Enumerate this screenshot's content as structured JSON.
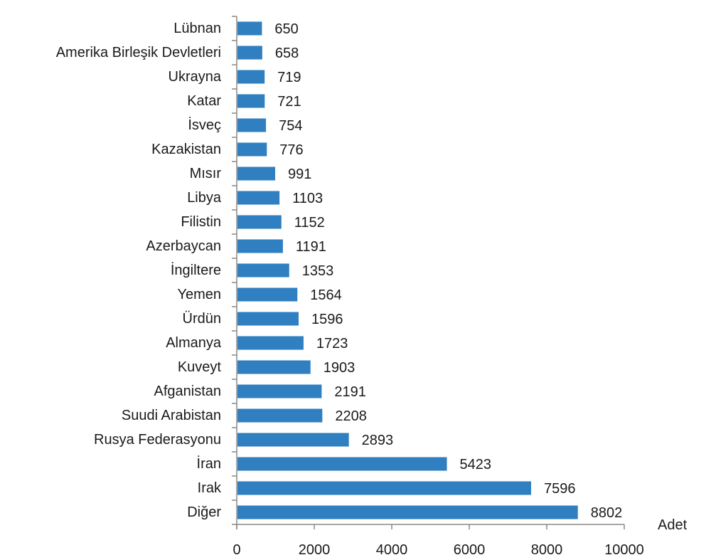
{
  "chart_data": {
    "type": "bar",
    "orientation": "horizontal",
    "title": "",
    "xlabel": "",
    "ylabel": "",
    "unit_label": "Adet",
    "categories": [
      "Lübnan",
      "Amerika Birleşik Devletleri",
      "Ukrayna",
      "Katar",
      "İsveç",
      "Kazakistan",
      "Mısır",
      "Libya",
      "Filistin",
      "Azerbaycan",
      "İngiltere",
      "Yemen",
      "Ürdün",
      "Almanya",
      "Kuveyt",
      "Afganistan",
      "Suudi Arabistan",
      "Rusya Federasyonu",
      "İran",
      "Irak",
      "Diğer"
    ],
    "values": [
      650,
      658,
      719,
      721,
      754,
      776,
      991,
      1103,
      1152,
      1191,
      1353,
      1564,
      1596,
      1723,
      1903,
      2191,
      2208,
      2893,
      5423,
      7596,
      8802
    ],
    "xlim": [
      0,
      10000
    ],
    "xticks": [
      "0",
      "2000",
      "4000",
      "6000",
      "8000",
      "10000"
    ],
    "bar_color": "#2f7fc1",
    "grid": false,
    "legend": "none"
  }
}
